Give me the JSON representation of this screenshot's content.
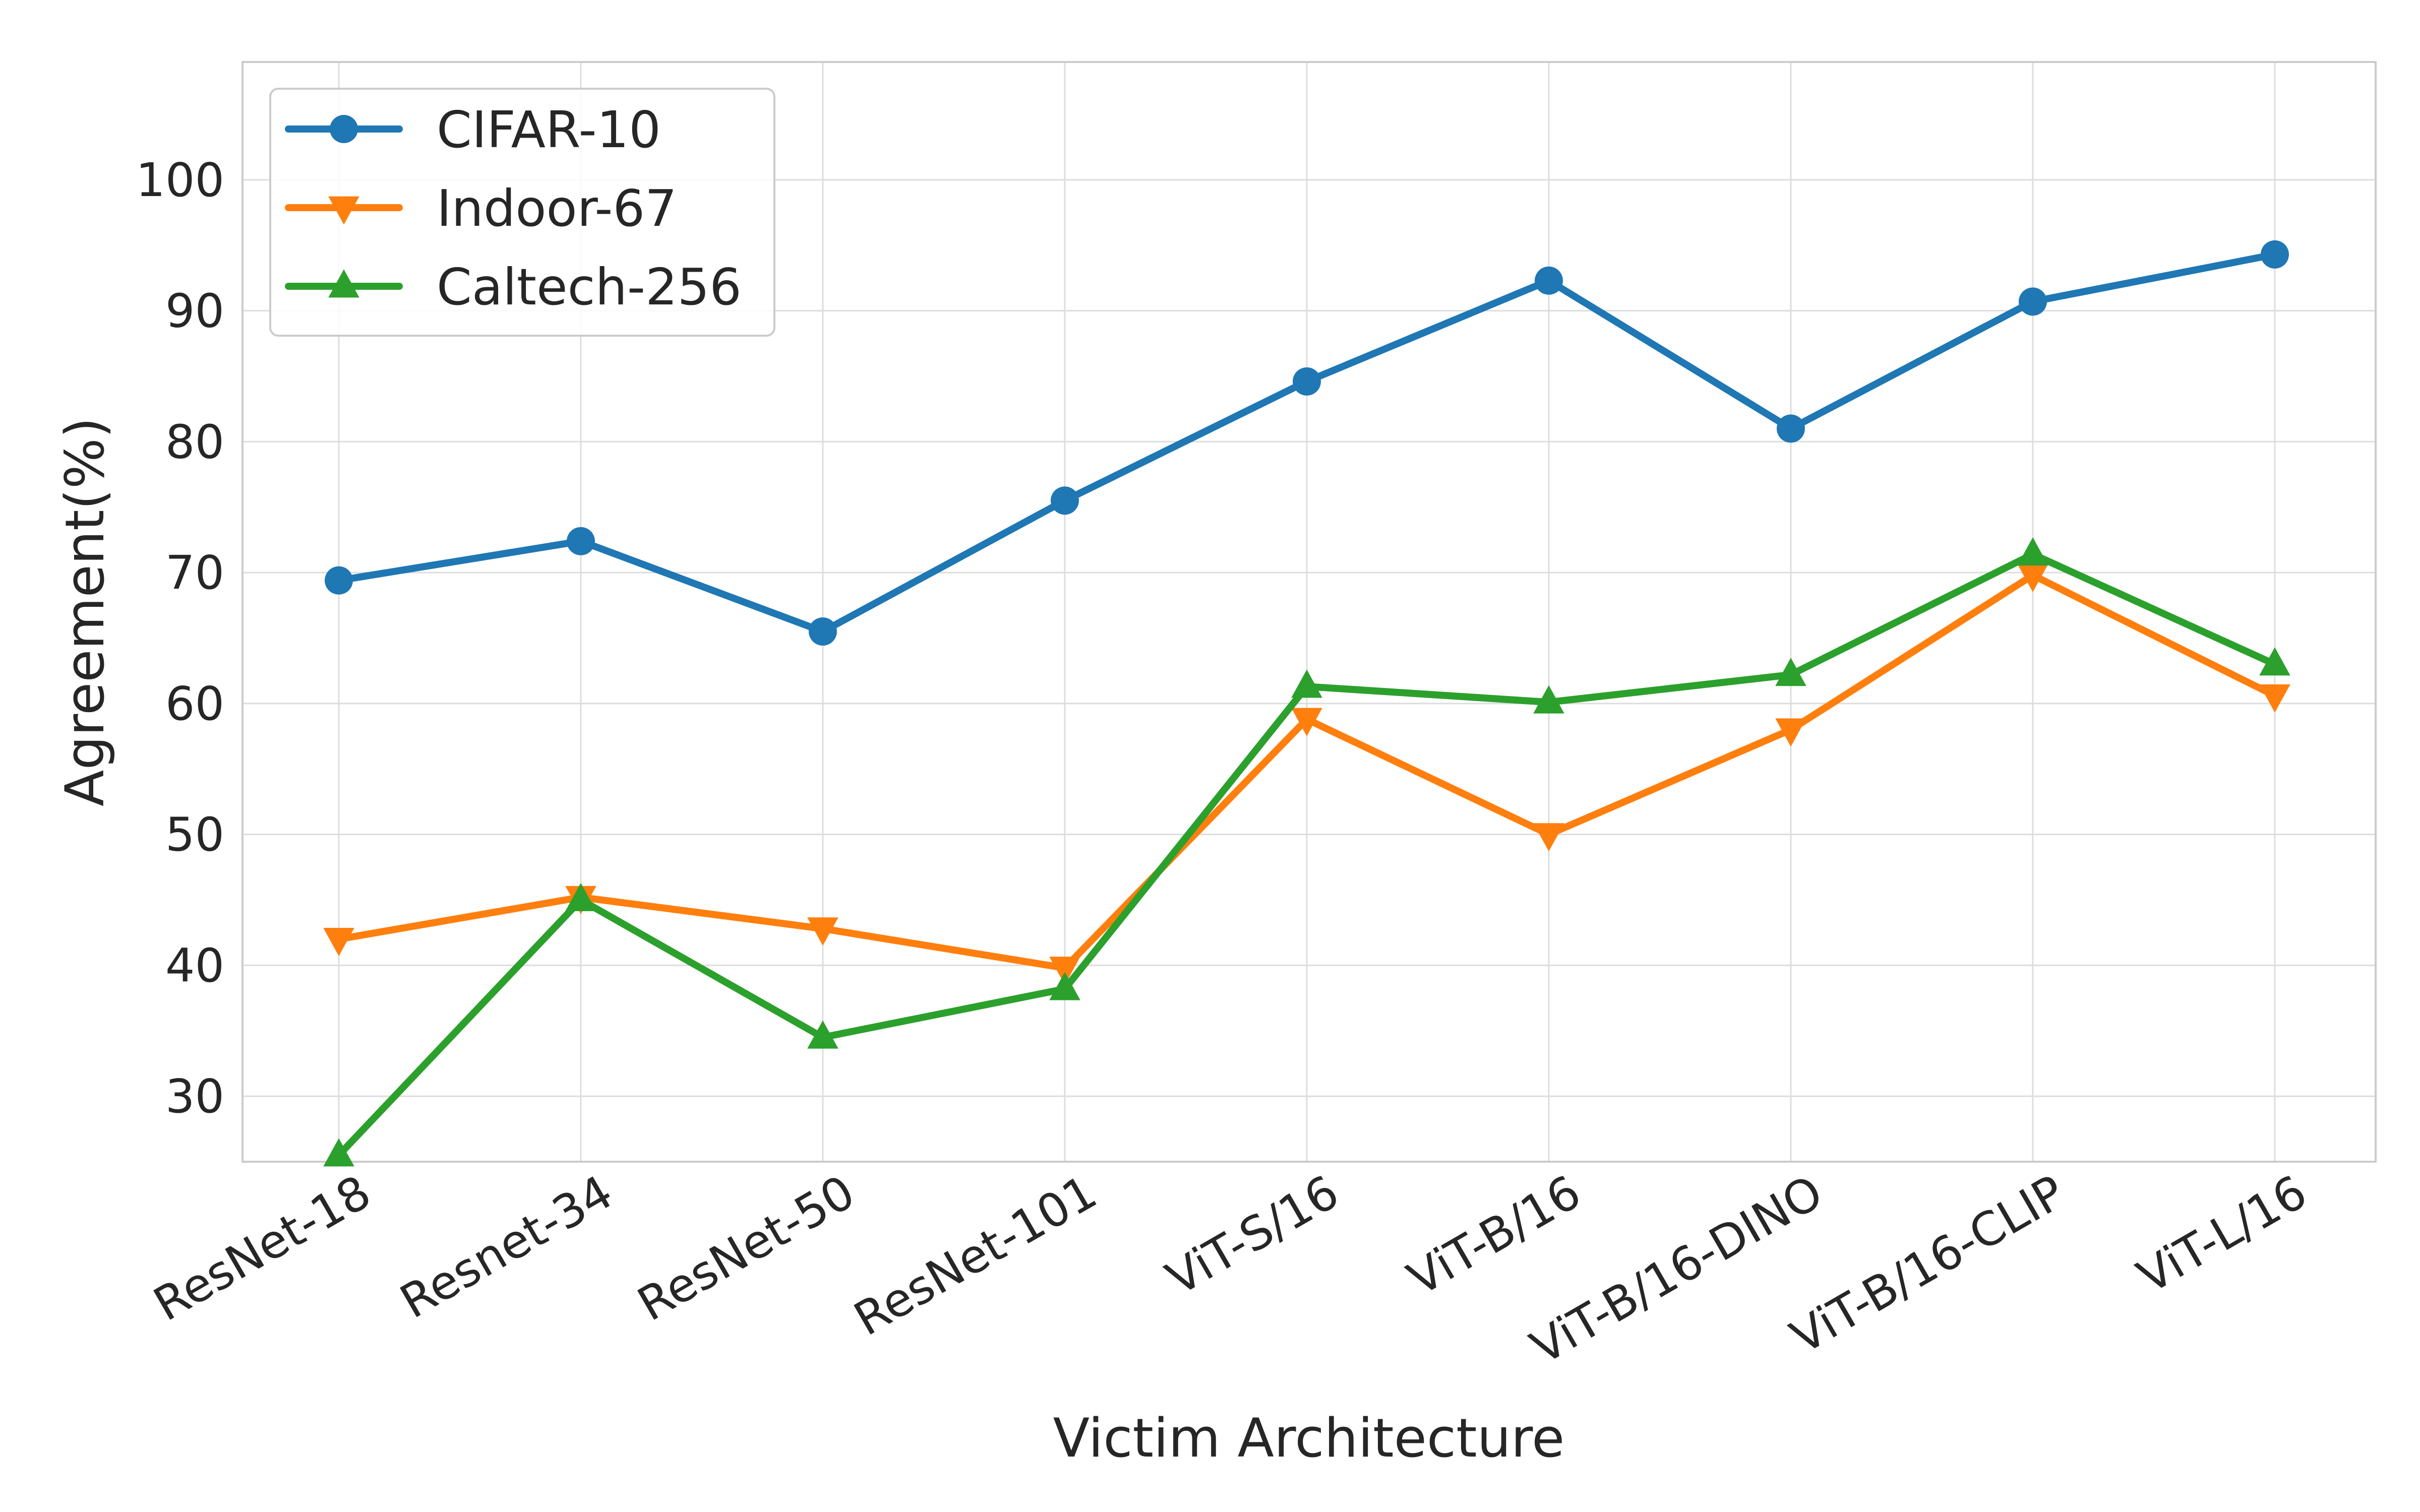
{
  "chart_data": {
    "type": "line",
    "title": "",
    "xlabel": "Victim Architecture",
    "ylabel": "Agreement(%)",
    "categories": [
      "ResNet-18",
      "Resnet-34",
      "ResNet-50",
      "ResNet-101",
      "ViT-S/16",
      "ViT-B/16",
      "ViT-B/16-DINO",
      "ViT-B/16-CLIP",
      "ViT-L/16"
    ],
    "ylim": [
      25,
      109
    ],
    "yticks": [
      30,
      40,
      50,
      60,
      70,
      80,
      90,
      100
    ],
    "grid": true,
    "legend_position": "top-left",
    "series": [
      {
        "name": "CIFAR-10",
        "color": "#1f77b4",
        "marker": "circle",
        "values": [
          69.4,
          72.4,
          65.5,
          75.5,
          84.6,
          92.3,
          81.0,
          90.7,
          94.3
        ]
      },
      {
        "name": "Indoor-67",
        "color": "#ff7f0e",
        "marker": "triangle-down",
        "values": [
          42.0,
          45.2,
          42.8,
          39.8,
          58.8,
          50.0,
          58.0,
          69.8,
          60.6
        ]
      },
      {
        "name": "Caltech-256",
        "color": "#2ca02c",
        "marker": "triangle-up",
        "values": [
          25.5,
          45.0,
          34.5,
          38.2,
          61.3,
          60.1,
          62.2,
          71.4,
          63.0
        ]
      }
    ]
  }
}
